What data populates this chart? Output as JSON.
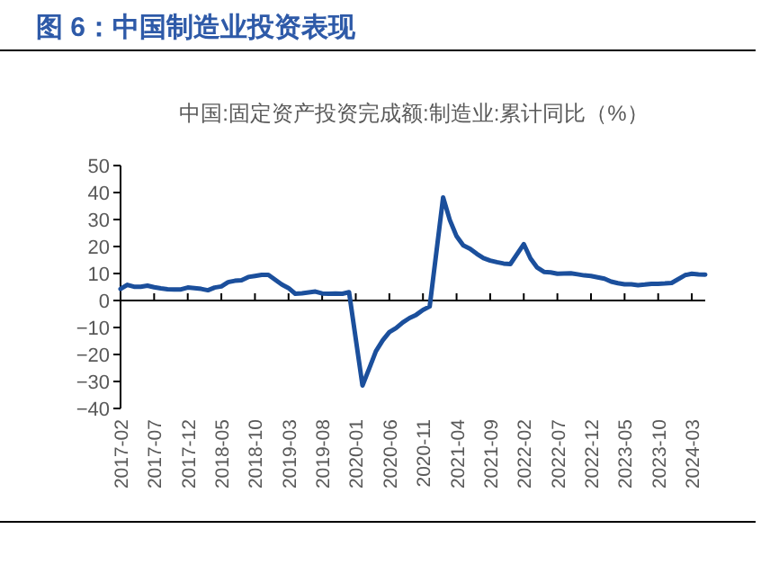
{
  "chart_data": {
    "type": "line",
    "title": "图 6：中国制造业投资表现",
    "subtitle": "中国:固定资产投资完成额:制造业:累计同比（%）",
    "x": [
      "2017-02",
      "2017-03",
      "2017-04",
      "2017-05",
      "2017-06",
      "2017-07",
      "2017-08",
      "2017-09",
      "2017-10",
      "2017-11",
      "2017-12",
      "2018-02",
      "2018-03",
      "2018-04",
      "2018-05",
      "2018-06",
      "2018-07",
      "2018-08",
      "2018-09",
      "2018-10",
      "2018-11",
      "2018-12",
      "2019-02",
      "2019-03",
      "2019-04",
      "2019-05",
      "2019-06",
      "2019-07",
      "2019-08",
      "2019-09",
      "2019-10",
      "2019-11",
      "2019-12",
      "2020-02",
      "2020-03",
      "2020-04",
      "2020-05",
      "2020-06",
      "2020-07",
      "2020-08",
      "2020-09",
      "2020-10",
      "2020-11",
      "2020-12",
      "2021-02",
      "2021-03",
      "2021-04",
      "2021-05",
      "2021-06",
      "2021-07",
      "2021-08",
      "2021-09",
      "2021-10",
      "2021-11",
      "2021-12",
      "2022-02",
      "2022-03",
      "2022-04",
      "2022-05",
      "2022-06",
      "2022-07",
      "2022-08",
      "2022-09",
      "2022-10",
      "2022-11",
      "2022-12",
      "2023-02",
      "2023-03",
      "2023-04",
      "2023-05",
      "2023-06",
      "2023-07",
      "2023-08",
      "2023-09",
      "2023-10",
      "2023-11",
      "2023-12",
      "2024-02",
      "2024-03",
      "2024-04",
      "2024-05"
    ],
    "series": [
      {
        "color": "#1b4f9c",
        "values": [
          4.3,
          5.8,
          5.1,
          5.1,
          5.5,
          4.9,
          4.5,
          4.2,
          4.1,
          4.1,
          4.8,
          4.3,
          3.8,
          4.8,
          5.2,
          6.8,
          7.3,
          7.5,
          8.7,
          9.1,
          9.5,
          9.5,
          5.9,
          4.6,
          2.5,
          2.7,
          3.0,
          3.3,
          2.6,
          2.5,
          2.6,
          2.5,
          3.1,
          -31.5,
          -25.2,
          -18.8,
          -14.8,
          -11.7,
          -10.2,
          -8.1,
          -6.5,
          -5.3,
          -3.5,
          -2.2,
          38.2,
          29.8,
          23.8,
          20.4,
          19.2,
          17.3,
          15.7,
          14.8,
          14.2,
          13.7,
          13.5,
          20.9,
          15.6,
          12.2,
          10.6,
          10.4,
          9.9,
          10.0,
          10.1,
          9.7,
          9.3,
          9.1,
          8.1,
          7.0,
          6.4,
          6.0,
          6.0,
          5.7,
          5.9,
          6.2,
          6.2,
          6.3,
          6.5,
          9.4,
          9.9,
          9.7,
          9.6
        ]
      }
    ],
    "xlim": [
      "2017-02",
      "2024-05"
    ],
    "xticks": [
      "2017-02",
      "2017-07",
      "2017-12",
      "2018-05",
      "2018-10",
      "2019-03",
      "2019-08",
      "2020-01",
      "2020-06",
      "2020-11",
      "2021-04",
      "2021-09",
      "2022-02",
      "2022-07",
      "2022-12",
      "2023-05",
      "2023-10",
      "2024-03"
    ],
    "ylim": [
      -40,
      50
    ],
    "yticks": [
      -40,
      -30,
      -20,
      -10,
      0,
      10,
      20,
      30,
      40,
      50
    ],
    "marker": "none",
    "line_style": "solid"
  }
}
